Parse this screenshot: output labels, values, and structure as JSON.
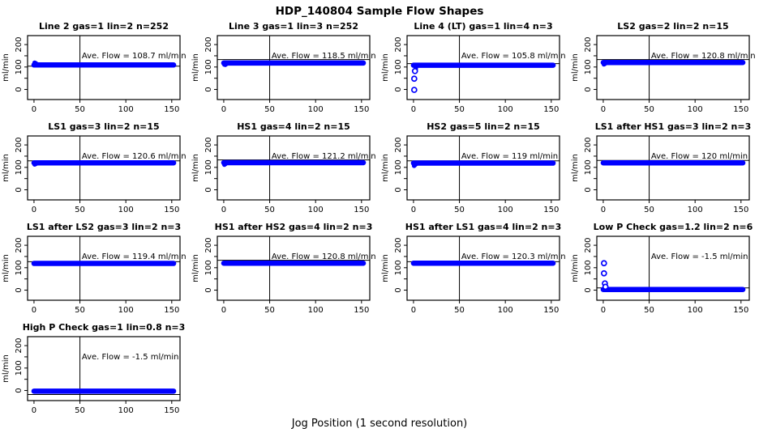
{
  "page_title": "HDP_140804  Sample Flow Shapes",
  "xlabel": "Jog Position (1 second resolution)",
  "chart_data": {
    "type": "scatter",
    "grid": "4x4, 13 subplots",
    "ylabel": "ml/min",
    "x_ticks": [
      0,
      50,
      100,
      150
    ],
    "y_ticks_labeled": [
      0,
      100,
      200
    ],
    "y_ticks_all": [
      0,
      50,
      100,
      150,
      200
    ],
    "xlim": [
      -7,
      159
    ],
    "ylim": [
      -45,
      240
    ],
    "vline_x": 50,
    "band_x_range": [
      0,
      152
    ],
    "point_color": "#0000FF",
    "axis_color": "#000000",
    "plots": [
      {
        "title": "Line 2 gas=1 lin=2 n=252",
        "ave_flow": 108.7,
        "ave_flow_label": "Ave. Flow =  108.7  ml/min",
        "band_y": 109,
        "hline": 104,
        "points_filled": [
          [
            0.7,
            119
          ],
          [
            1.7,
            117
          ],
          [
            2.7,
            114
          ]
        ],
        "points_open": []
      },
      {
        "title": "Line 3 gas=1 lin=3 n=252",
        "ave_flow": 118.5,
        "ave_flow_label": "Ave. Flow =  118.5  ml/min",
        "band_y": 118,
        "hline": 133,
        "points_filled": [
          [
            0.7,
            111
          ],
          [
            1.7,
            110
          ],
          [
            2.7,
            113
          ]
        ],
        "points_open": []
      },
      {
        "title": "Line 4 (LT) gas=1 lin=4 n=3",
        "ave_flow": 105.8,
        "ave_flow_label": "Ave. Flow =  105.8  ml/min",
        "band_y": 108,
        "hline": 115,
        "points_filled": [
          [
            2.5,
            93
          ]
        ],
        "points_open": [
          [
            0.8,
            -2
          ],
          [
            0.8,
            48
          ],
          [
            1.6,
            82
          ]
        ]
      },
      {
        "title": "LS2 gas=2 lin=2 n=15",
        "ave_flow": 120.8,
        "ave_flow_label": "Ave. Flow =  120.8  ml/min",
        "band_y": 120,
        "hline": 133,
        "points_filled": [
          [
            0.7,
            112
          ],
          [
            1.7,
            114
          ]
        ],
        "points_open": []
      },
      {
        "title": "LS1 gas=3 lin=2 n=15",
        "ave_flow": 120.6,
        "ave_flow_label": "Ave. Flow =  120.6  ml/min",
        "band_y": 120,
        "hline": 129,
        "points_filled": [
          [
            0.7,
            113
          ],
          [
            1.7,
            115
          ]
        ],
        "points_open": []
      },
      {
        "title": "HS1 gas=4 lin=2 n=15",
        "ave_flow": 121.2,
        "ave_flow_label": "Ave. Flow =  121.2  ml/min",
        "band_y": 121,
        "hline": 133,
        "points_filled": [
          [
            0.7,
            112
          ],
          [
            1.7,
            115
          ]
        ],
        "points_open": []
      },
      {
        "title": "HS2 gas=5 lin=2 n=15",
        "ave_flow": 119,
        "ave_flow_label": "Ave. Flow =  119  ml/min",
        "band_y": 119,
        "hline": 129,
        "points_filled": [
          [
            0.7,
            107
          ],
          [
            1.7,
            111
          ],
          [
            2.7,
            115
          ]
        ],
        "points_open": []
      },
      {
        "title": "LS1 after HS1 gas=3 lin=2 n=3",
        "ave_flow": 120,
        "ave_flow_label": "Ave. Flow =  120  ml/min",
        "band_y": 120,
        "hline": 131,
        "points_filled": [],
        "points_open": []
      },
      {
        "title": "LS1 after LS2 gas=3 lin=2 n=3",
        "ave_flow": 119.4,
        "ave_flow_label": "Ave. Flow =  119.4  ml/min",
        "band_y": 119,
        "hline": 127,
        "points_filled": [],
        "points_open": []
      },
      {
        "title": "HS1 after HS2 gas=4 lin=2 n=3",
        "ave_flow": 120.8,
        "ave_flow_label": "Ave. Flow =  120.8  ml/min",
        "band_y": 120,
        "hline": 133,
        "points_filled": [],
        "points_open": []
      },
      {
        "title": "HS1 after LS1 gas=4 lin=2 n=3",
        "ave_flow": 120.3,
        "ave_flow_label": "Ave. Flow =  120.3  ml/min",
        "band_y": 120,
        "hline": 127,
        "points_filled": [],
        "points_open": []
      },
      {
        "title": "Low P Check gas=1.2 lin=2 n=6",
        "ave_flow": -1.5,
        "ave_flow_label": "Ave. Flow =  -1.5  ml/min",
        "band_y": 3,
        "hline": 10,
        "points_filled": [],
        "points_open": [
          [
            0.8,
            120
          ],
          [
            0.8,
            75
          ],
          [
            1.8,
            30
          ],
          [
            2.4,
            15
          ]
        ]
      },
      {
        "title": "High P Check gas=1 lin=0.8 n=3",
        "ave_flow": -1.5,
        "ave_flow_label": "Ave. Flow =  -1.5  ml/min",
        "band_y": -3,
        "hline": -18,
        "points_filled": [],
        "points_open": []
      }
    ]
  }
}
